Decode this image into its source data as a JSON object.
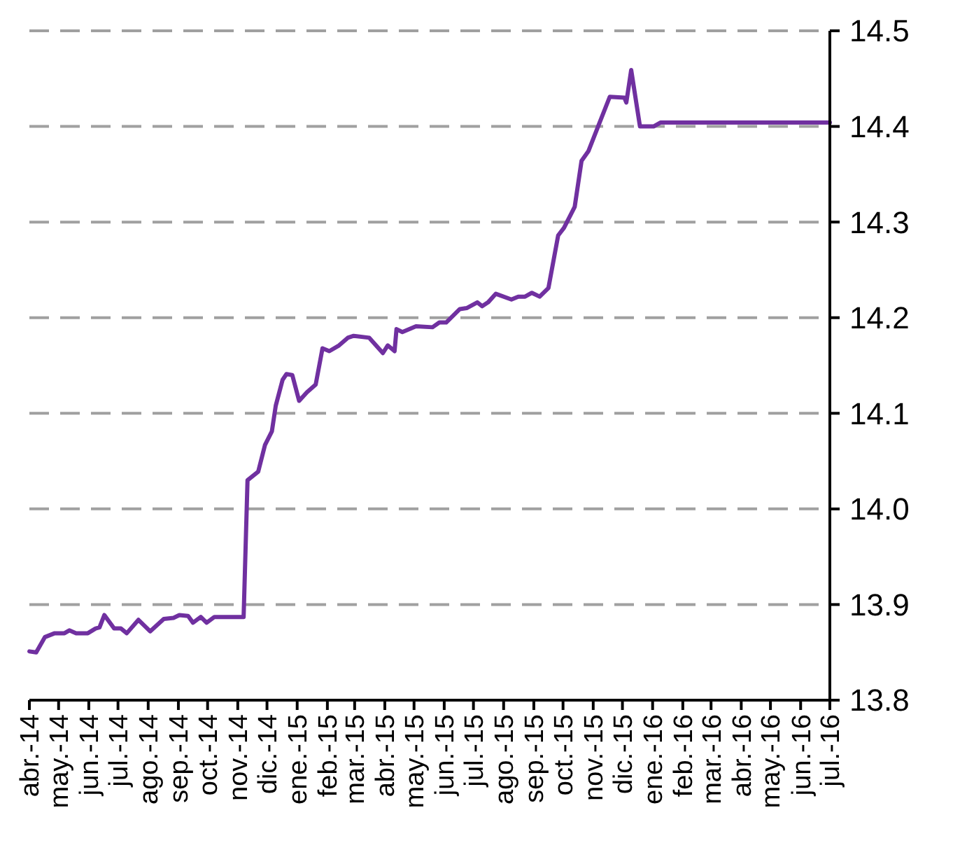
{
  "chart_data": {
    "type": "line",
    "x": [
      "2014-04-01",
      "2014-04-08",
      "2014-04-17",
      "2014-04-27",
      "2014-05-07",
      "2014-05-12",
      "2014-05-19",
      "2014-05-31",
      "2014-06-08",
      "2014-06-12",
      "2014-06-17",
      "2014-06-27",
      "2014-07-04",
      "2014-07-10",
      "2014-07-22",
      "2014-08-03",
      "2014-08-17",
      "2014-08-27",
      "2014-09-02",
      "2014-09-11",
      "2014-09-16",
      "2014-09-24",
      "2014-09-30",
      "2014-10-08",
      "2014-11-07",
      "2014-11-11",
      "2014-11-22",
      "2014-11-29",
      "2014-12-06",
      "2014-12-10",
      "2014-12-17",
      "2014-12-21",
      "2014-12-27",
      "2015-01-03",
      "2015-01-11",
      "2015-01-20",
      "2015-01-27",
      "2015-02-03",
      "2015-02-13",
      "2015-02-22",
      "2015-02-28",
      "2015-03-16",
      "2015-03-30",
      "2015-04-04",
      "2015-04-11",
      "2015-04-13",
      "2015-04-19",
      "2015-05-03",
      "2015-05-20",
      "2015-05-27",
      "2015-06-03",
      "2015-06-17",
      "2015-06-24",
      "2015-07-05",
      "2015-07-10",
      "2015-07-16",
      "2015-07-24",
      "2015-08-09",
      "2015-08-16",
      "2015-08-23",
      "2015-08-30",
      "2015-09-07",
      "2015-09-16",
      "2015-09-26",
      "2015-10-02",
      "2015-10-13",
      "2015-10-20",
      "2015-10-27",
      "2015-11-06",
      "2015-11-18",
      "2015-12-03",
      "2015-12-05",
      "2015-12-10",
      "2015-12-19",
      "2016-01-02",
      "2016-01-09",
      "2016-07-01"
    ],
    "series": [
      {
        "color": "#7030a0",
        "values": [
          13.851,
          13.85,
          13.866,
          13.87,
          13.87,
          13.873,
          13.87,
          13.87,
          13.875,
          13.876,
          13.889,
          13.875,
          13.875,
          13.87,
          13.884,
          13.872,
          13.885,
          13.886,
          13.889,
          13.888,
          13.881,
          13.887,
          13.881,
          13.887,
          13.887,
          14.03,
          14.039,
          14.067,
          14.081,
          14.108,
          14.135,
          14.141,
          14.14,
          14.113,
          14.122,
          14.13,
          14.168,
          14.165,
          14.171,
          14.179,
          14.181,
          14.179,
          14.163,
          14.171,
          14.165,
          14.188,
          14.185,
          14.191,
          14.19,
          14.195,
          14.195,
          14.209,
          14.21,
          14.216,
          14.212,
          14.216,
          14.225,
          14.219,
          14.222,
          14.222,
          14.226,
          14.222,
          14.231,
          14.286,
          14.294,
          14.316,
          14.364,
          14.374,
          14.4,
          14.431,
          14.43,
          14.425,
          14.459,
          14.4,
          14.4,
          14.404,
          14.404
        ]
      }
    ],
    "xlim": [
      "2014-04-01",
      "2016-07-01"
    ],
    "xticks": [
      {
        "value": "2014-04-01",
        "label": "abr.-14"
      },
      {
        "value": "2014-05-01",
        "label": "may.-14"
      },
      {
        "value": "2014-06-01",
        "label": "jun.-14"
      },
      {
        "value": "2014-07-01",
        "label": "jul.-14"
      },
      {
        "value": "2014-08-01",
        "label": "ago.-14"
      },
      {
        "value": "2014-09-01",
        "label": "sep.-14"
      },
      {
        "value": "2014-10-01",
        "label": "oct.-14"
      },
      {
        "value": "2014-11-01",
        "label": "nov.-14"
      },
      {
        "value": "2014-12-01",
        "label": "dic.-14"
      },
      {
        "value": "2015-01-01",
        "label": "ene.-15"
      },
      {
        "value": "2015-02-01",
        "label": "feb.-15"
      },
      {
        "value": "2015-03-01",
        "label": "mar.-15"
      },
      {
        "value": "2015-04-01",
        "label": "abr.-15"
      },
      {
        "value": "2015-05-01",
        "label": "may.-15"
      },
      {
        "value": "2015-06-01",
        "label": "jun.-15"
      },
      {
        "value": "2015-07-01",
        "label": "jul.-15"
      },
      {
        "value": "2015-08-01",
        "label": "ago.-15"
      },
      {
        "value": "2015-09-01",
        "label": "sep.-15"
      },
      {
        "value": "2015-10-01",
        "label": "oct.-15"
      },
      {
        "value": "2015-11-01",
        "label": "nov.-15"
      },
      {
        "value": "2015-12-01",
        "label": "dic.-15"
      },
      {
        "value": "2016-01-01",
        "label": "ene.-16"
      },
      {
        "value": "2016-02-01",
        "label": "feb.-16"
      },
      {
        "value": "2016-03-01",
        "label": "mar.-16"
      },
      {
        "value": "2016-04-01",
        "label": "abr.-16"
      },
      {
        "value": "2016-05-01",
        "label": "may.-16"
      },
      {
        "value": "2016-06-01",
        "label": "jun.-16"
      },
      {
        "value": "2016-07-01",
        "label": "jul.-16"
      }
    ],
    "ylim": [
      13.8,
      14.5
    ],
    "yticks": [
      {
        "value": 13.8,
        "label": "13.8"
      },
      {
        "value": 13.9,
        "label": "13.9"
      },
      {
        "value": 14.0,
        "label": "14.0"
      },
      {
        "value": 14.1,
        "label": "14.1"
      },
      {
        "value": 14.2,
        "label": "14.2"
      },
      {
        "value": 14.3,
        "label": "14.3"
      },
      {
        "value": 14.4,
        "label": "14.4"
      },
      {
        "value": 14.5,
        "label": "14.5"
      }
    ],
    "grid": "y",
    "marker": "none",
    "line_style": "solid"
  }
}
